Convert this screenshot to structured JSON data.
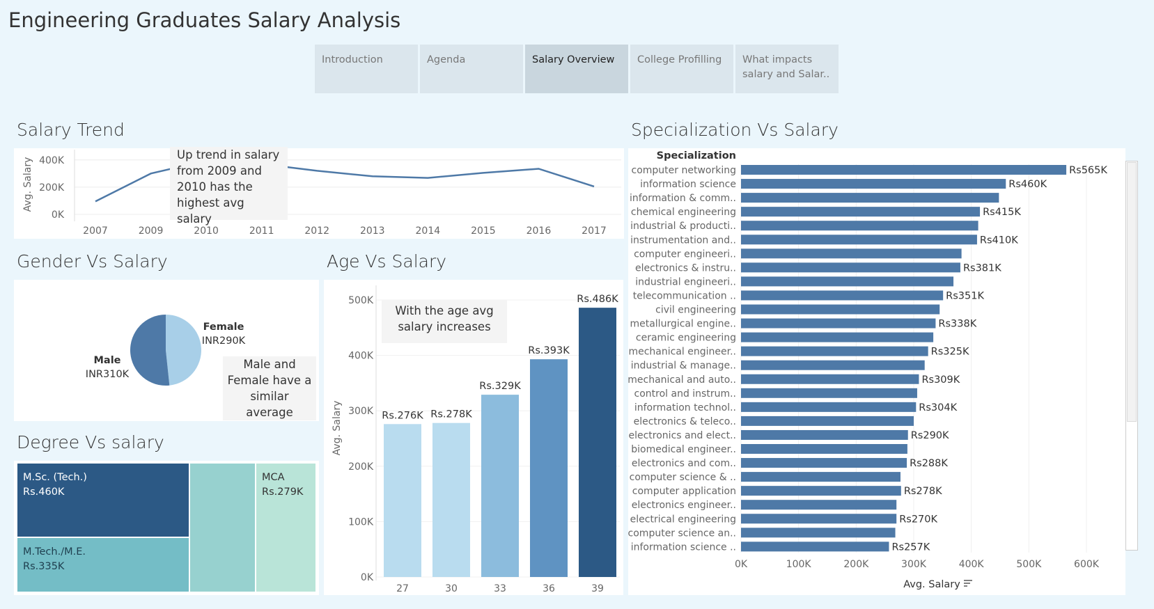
{
  "dashboard_title": "Engineering Graduates Salary Analysis",
  "tabs": [
    {
      "label": "Introduction"
    },
    {
      "label": "Agenda"
    },
    {
      "label": "Salary Overview"
    },
    {
      "label": "College Profilling"
    },
    {
      "label": "What impacts salary and Salar.."
    }
  ],
  "active_tab": 2,
  "sections": {
    "salary_trend": "Salary Trend",
    "gender": "Gender Vs Salary",
    "age": "Age Vs Salary",
    "degree": "Degree Vs salary",
    "specialization": "Specialization Vs Salary"
  },
  "notes": {
    "trend": "Up trend in salary from 2009 and 2010 has the highest avg salary",
    "gender": "Male and Female have a similar average",
    "age": "With the age avg salary increases"
  },
  "colors": {
    "line": "#4e79a7",
    "spec_bar": "#4e79a7",
    "pie_male": "#4e79a7",
    "pie_female": "#a8cfe8",
    "age_bars": [
      "#b9dcef",
      "#b9dcef",
      "#8cbcdd",
      "#5f93c2",
      "#2c5985"
    ],
    "degree": {
      "msc": "#2c5985",
      "mtech": "#74bdc6",
      "mid": "#97d1cf",
      "mca": "#b9e4d8"
    }
  },
  "chart_data": [
    {
      "id": "salary_trend",
      "type": "line",
      "x": [
        "2007",
        "2009",
        "2010",
        "2011",
        "2012",
        "2013",
        "2014",
        "2015",
        "2016",
        "2017"
      ],
      "values": [
        95,
        300,
        395,
        370,
        320,
        280,
        268,
        305,
        335,
        205
      ],
      "ylabel": "Avg. Salary",
      "yticks": [
        "0K",
        "200K",
        "400K"
      ],
      "ylim": [
        0,
        450
      ]
    },
    {
      "id": "gender",
      "type": "pie",
      "slices": [
        {
          "name": "Male",
          "label": "INR310K",
          "value": 310
        },
        {
          "name": "Female",
          "label": "INR290K",
          "value": 290
        }
      ]
    },
    {
      "id": "age",
      "type": "bar",
      "categories": [
        "27",
        "30",
        "33",
        "36",
        "39"
      ],
      "values": [
        276,
        278,
        329,
        393,
        486
      ],
      "labels": [
        "Rs.276K",
        "Rs.278K",
        "Rs.329K",
        "Rs.393K",
        "Rs.486K"
      ],
      "ylabel": "Avg. Salary",
      "yticks": [
        "0K",
        "100K",
        "200K",
        "300K",
        "400K",
        "500K"
      ],
      "ylim": [
        0,
        500
      ]
    },
    {
      "id": "degree",
      "type": "treemap",
      "items": [
        {
          "name": "M.Sc. (Tech.)",
          "label": "Rs.460K",
          "value": 460
        },
        {
          "name": "M.Tech./M.E.",
          "label": "Rs.335K",
          "value": 335
        },
        {
          "name": "",
          "label": "",
          "value": 300
        },
        {
          "name": "MCA",
          "label": "Rs.279K",
          "value": 279
        }
      ]
    },
    {
      "id": "specialization",
      "type": "bar",
      "orientation": "horizontal",
      "column_header": "Specialization",
      "xlabel": "Avg. Salary",
      "xticks": [
        "0K",
        "100K",
        "200K",
        "300K",
        "400K",
        "500K",
        "600K"
      ],
      "xlim": [
        0,
        600
      ],
      "categories": [
        "computer networking",
        "information science",
        "information & comm..",
        "chemical engineering",
        "industrial & producti..",
        "instrumentation and..",
        "computer engineeri..",
        "electronics & instru..",
        "industrial engineeri..",
        "telecommunication ..",
        "civil engineering",
        "metallurgical engine..",
        "ceramic engineering",
        "mechanical engineer..",
        "industrial & manage..",
        "mechanical and auto..",
        "control and instrum..",
        "information technol..",
        "electronics & teleco..",
        "electronics and elect..",
        "biomedical engineer..",
        "electronics and com..",
        "computer science & ..",
        "computer application",
        "electronics engineer..",
        "electrical engineering",
        "computer science an..",
        "information science .."
      ],
      "values": [
        565,
        460,
        448,
        415,
        412,
        410,
        383,
        381,
        369,
        351,
        345,
        338,
        334,
        325,
        319,
        309,
        306,
        304,
        300,
        290,
        289,
        288,
        277,
        278,
        270,
        270,
        268,
        257
      ],
      "labels": [
        "Rs565K",
        "Rs460K",
        "",
        "Rs415K",
        "",
        "Rs410K",
        "",
        "Rs381K",
        "",
        "Rs351K",
        "",
        "Rs338K",
        "",
        "Rs325K",
        "",
        "Rs309K",
        "",
        "Rs304K",
        "",
        "Rs290K",
        "",
        "Rs288K",
        "",
        "Rs278K",
        "",
        "Rs270K",
        "",
        "Rs257K"
      ]
    }
  ]
}
